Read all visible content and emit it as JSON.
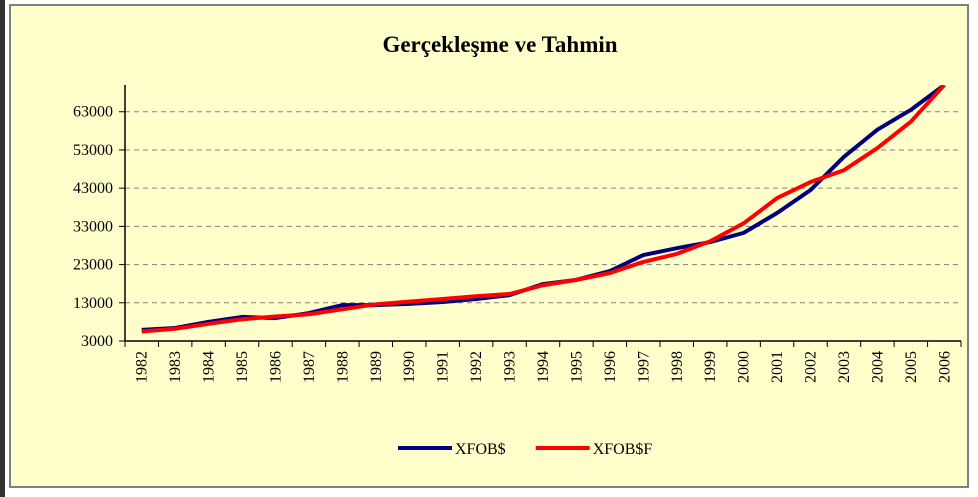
{
  "chart_data": {
    "type": "line",
    "title": "Gerçekleşme ve Tahmin",
    "categories": [
      "1982",
      "1983",
      "1984",
      "1985",
      "1986",
      "1987",
      "1988",
      "1989",
      "1990",
      "1991",
      "1992",
      "1993",
      "1994",
      "1995",
      "1996",
      "1997",
      "1998",
      "1999",
      "2000",
      "2001",
      "2002",
      "2003",
      "2004",
      "2005",
      "2006"
    ],
    "series": [
      {
        "name": "XFOB$",
        "color": "#000080",
        "values": [
          5900,
          6400,
          8000,
          9300,
          9000,
          10300,
          12400,
          12400,
          12700,
          13200,
          14000,
          15000,
          17900,
          19000,
          21300,
          25500,
          27300,
          28900,
          31300,
          36500,
          42500,
          51200,
          58300,
          63500,
          70000
        ]
      },
      {
        "name": "XFOB$F",
        "color": "#ff0000",
        "values": [
          5500,
          6200,
          7500,
          8700,
          9400,
          10000,
          11300,
          12600,
          13300,
          14000,
          14700,
          15300,
          17600,
          19000,
          20800,
          23700,
          25800,
          29100,
          33800,
          40400,
          44600,
          47700,
          53500,
          60400,
          70000
        ]
      }
    ],
    "ylim": [
      3000,
      70000
    ],
    "yticks": [
      3000,
      13000,
      23000,
      33000,
      43000,
      53000,
      63000
    ],
    "grid": true,
    "legend": "bottom"
  }
}
